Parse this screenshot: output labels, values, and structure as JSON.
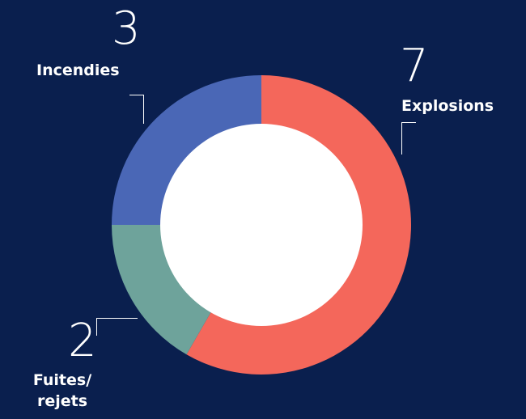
{
  "chart_data": {
    "type": "pie",
    "variant": "donut",
    "title": "",
    "slices": [
      {
        "key": "explosions",
        "label": "Explosions",
        "value": 7,
        "color": "#f4675b"
      },
      {
        "key": "fuites",
        "label": "Fuites/\nrejets",
        "value": 2,
        "color": "#6ea39b"
      },
      {
        "key": "incendies",
        "label": "Incendies",
        "value": 3,
        "color": "#4a67b6"
      }
    ],
    "start_angle_deg": 0,
    "direction": "clockwise",
    "hole_color": "#ffffff",
    "legend": "none"
  },
  "labels": {
    "explosions": {
      "value": "7",
      "label": "Explosions"
    },
    "incendies": {
      "value": "3",
      "label": "Incendies"
    },
    "fuites": {
      "value": "2",
      "label_line1": "Fuites/",
      "label_line2": "rejets"
    }
  },
  "colors": {
    "background": "#0a1f4e",
    "text": "#ffffff"
  }
}
